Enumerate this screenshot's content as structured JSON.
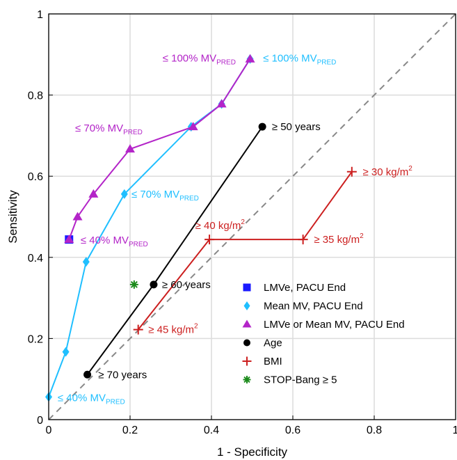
{
  "chart_data": {
    "type": "line",
    "xlabel": "1 - Specificity",
    "ylabel": "Sensitivity",
    "xlim": [
      0,
      1
    ],
    "ylim": [
      0,
      1
    ],
    "xticks": [
      "0",
      "0.2",
      "0.4",
      "0.6",
      "0.8",
      "1"
    ],
    "yticks": [
      "0",
      "0.2",
      "0.4",
      "0.6",
      "0.8",
      "1"
    ],
    "grid": true,
    "legend_position": "lower-right",
    "reference_line": {
      "x": [
        0,
        1
      ],
      "y": [
        0,
        1
      ],
      "color": "#888888",
      "style": "dashed"
    },
    "series": [
      {
        "name": "LMVe, PACU End",
        "color": "#1a1aff",
        "marker": "square",
        "line": false,
        "x": [
          0.05
        ],
        "y": [
          0.444
        ]
      },
      {
        "name": "Mean MV, PACU End",
        "color": "#1fbfff",
        "marker": "diamond",
        "line": true,
        "x": [
          0,
          0.042,
          0.092,
          0.186,
          0.35,
          0.425,
          0.495
        ],
        "y": [
          0.056,
          0.167,
          0.389,
          0.556,
          0.722,
          0.778,
          0.889
        ]
      },
      {
        "name": "LMVe or Mean MV, PACU End",
        "color": "#b324c8",
        "marker": "triangle",
        "line": true,
        "x": [
          0.05,
          0.071,
          0.11,
          0.2,
          0.355,
          0.425,
          0.495
        ],
        "y": [
          0.444,
          0.5,
          0.556,
          0.667,
          0.722,
          0.778,
          0.889
        ]
      },
      {
        "name": "Age",
        "color": "#000000",
        "marker": "circle",
        "line": true,
        "x": [
          0.095,
          0.258,
          0.525
        ],
        "y": [
          0.111,
          0.333,
          0.722
        ]
      },
      {
        "name": "BMI",
        "color": "#cc1f1f",
        "marker": "plus",
        "line": true,
        "x": [
          0.22,
          0.395,
          0.625,
          0.745
        ],
        "y": [
          0.222,
          0.444,
          0.444,
          0.611
        ]
      },
      {
        "name": "STOP-Bang ≥ 5",
        "color": "#1a8a1a",
        "marker": "asterisk",
        "line": false,
        "x": [
          0.21
        ],
        "y": [
          0.333
        ]
      }
    ],
    "annotations": [
      {
        "pre": "≤ 100% MV",
        "sub": "PRED",
        "sup": "",
        "post": "",
        "color": "#b324c8",
        "anchor": "end",
        "x": 0.47,
        "y": 0.889,
        "dx": -6,
        "dy": 4
      },
      {
        "pre": "≤ 100% MV",
        "sub": "PRED",
        "sup": "",
        "post": "",
        "color": "#1fbfff",
        "anchor": "start",
        "x": 0.52,
        "y": 0.889,
        "dx": 4,
        "dy": 4
      },
      {
        "pre": "≤ 70% MV",
        "sub": "PRED",
        "sup": "",
        "post": "",
        "color": "#b324c8",
        "anchor": "start",
        "x": 0.065,
        "y": 0.71,
        "dx": 0,
        "dy": 0
      },
      {
        "pre": "≤ 70% MV",
        "sub": "PRED",
        "sup": "",
        "post": "",
        "color": "#1fbfff",
        "anchor": "start",
        "x": 0.2,
        "y": 0.556,
        "dx": 2,
        "dy": 5
      },
      {
        "pre": "≤ 40% MV",
        "sub": "PRED",
        "sup": "",
        "post": "",
        "color": "#b324c8",
        "anchor": "start",
        "x": 0.075,
        "y": 0.444,
        "dx": 2,
        "dy": 6
      },
      {
        "pre": "≤ 40% MV",
        "sub": "PRED",
        "sup": "",
        "post": "",
        "color": "#1fbfff",
        "anchor": "start",
        "x": 0.022,
        "y": 0.056,
        "dx": 0,
        "dy": 6
      },
      {
        "pre": "≥ 50 years",
        "sub": "",
        "sup": "",
        "post": "",
        "color": "#000000",
        "anchor": "start",
        "x": 0.545,
        "y": 0.722,
        "dx": 2,
        "dy": 5
      },
      {
        "pre": "≥ 60 years",
        "sub": "",
        "sup": "",
        "post": "",
        "color": "#000000",
        "anchor": "start",
        "x": 0.275,
        "y": 0.333,
        "dx": 2,
        "dy": 5
      },
      {
        "pre": "≥ 70 years",
        "sub": "",
        "sup": "",
        "post": "",
        "color": "#000000",
        "anchor": "start",
        "x": 0.115,
        "y": 0.111,
        "dx": 4,
        "dy": 5
      },
      {
        "pre": "≥ 30 kg/m",
        "sub": "",
        "sup": "2",
        "post": "",
        "color": "#cc1f1f",
        "anchor": "start",
        "x": 0.765,
        "y": 0.611,
        "dx": 4,
        "dy": 5
      },
      {
        "pre": "≥ 35 kg/m",
        "sub": "",
        "sup": "2",
        "post": "",
        "color": "#cc1f1f",
        "anchor": "start",
        "x": 0.645,
        "y": 0.444,
        "dx": 4,
        "dy": 5
      },
      {
        "pre": "≥ 40 kg/m",
        "sub": "",
        "sup": "2",
        "post": "",
        "color": "#cc1f1f",
        "anchor": "start",
        "x": 0.36,
        "y": 0.47,
        "dx": 0,
        "dy": 0
      },
      {
        "pre": "≥ 45 kg/m",
        "sub": "",
        "sup": "2",
        "post": "",
        "color": "#cc1f1f",
        "anchor": "start",
        "x": 0.238,
        "y": 0.222,
        "dx": 4,
        "dy": 5
      }
    ]
  }
}
